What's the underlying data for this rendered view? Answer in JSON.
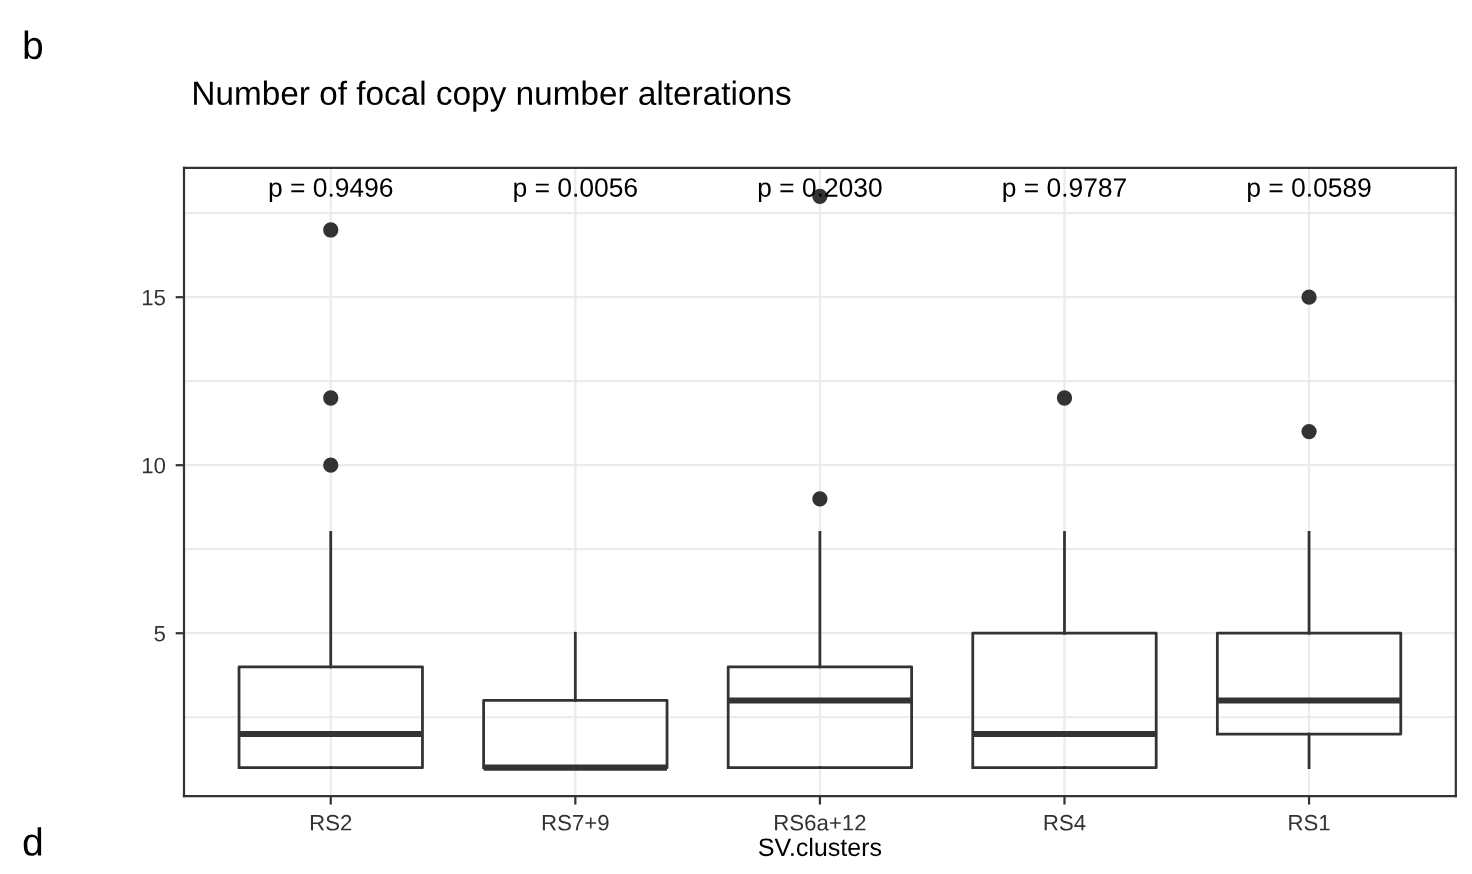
{
  "chart_data": {
    "type": "box",
    "title": "Number of focal copy number alterations",
    "xlabel": "SV.clusters",
    "categories": [
      "RS2",
      "RS7+9",
      "RS6a+12",
      "RS4",
      "RS1"
    ],
    "boxes": [
      {
        "low": 1,
        "q1": 1,
        "median": 2,
        "q3": 4,
        "high": 8,
        "outliers": [
          10,
          12,
          17
        ]
      },
      {
        "low": 1,
        "q1": 1,
        "median": 1,
        "q3": 3,
        "high": 5
      },
      {
        "low": 1,
        "q1": 1,
        "median": 3,
        "q3": 4,
        "high": 8,
        "outliers": [
          9,
          18
        ]
      },
      {
        "low": 1,
        "q1": 1,
        "median": 2,
        "q3": 5,
        "high": 8,
        "outliers": [
          12
        ]
      },
      {
        "low": 1,
        "q1": 2,
        "median": 3,
        "q3": 5,
        "high": 8,
        "outliers": [
          11,
          15
        ]
      }
    ],
    "ylim": [
      0.15,
      18.85
    ],
    "yticks": [
      {
        "value": 2.5,
        "label": null
      },
      5,
      {
        "value": 7.5,
        "label": null
      },
      10,
      {
        "value": 12.5,
        "label": null
      },
      15,
      {
        "value": 17.5,
        "label": null
      }
    ],
    "grid": true,
    "annotations": [
      "b",
      "d",
      "p = 0.9496",
      "p = 0.0056",
      "p = 0.2030",
      "p = 0.9787",
      "p = 0.0589"
    ]
  }
}
